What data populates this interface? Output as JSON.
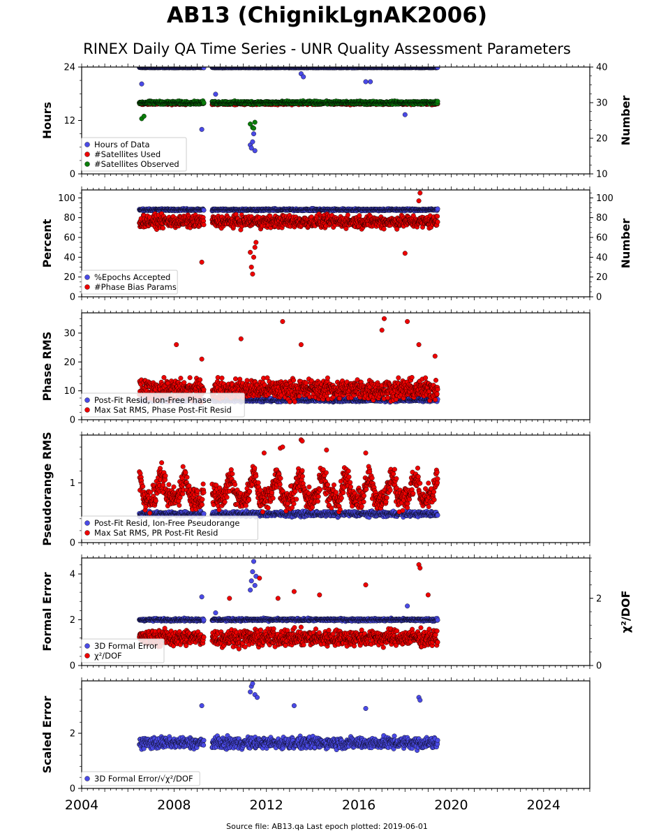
{
  "title": "AB13 (ChignikLgnAK2006)",
  "subtitle": "RINEX Daily QA Time Series - UNR Quality Assessment Parameters",
  "footer": "Source file: AB13.qa Last epoch plotted: 2019-06-01",
  "colors": {
    "blue": "#4a4ae6",
    "red": "#ee0000",
    "green": "#0a7d0a",
    "edge": "#000000"
  },
  "chart_data": [
    {
      "type": "scatter",
      "ylabel": "Hours",
      "ylabel_right": "Number",
      "xlim": [
        2004,
        2026
      ],
      "ylim": [
        0,
        24
      ],
      "ylim_right": [
        10,
        40
      ],
      "yticks": [
        "0",
        "12",
        "24"
      ],
      "yticks_right": [
        "10",
        "20",
        "30",
        "40"
      ],
      "legend": "lower-left",
      "series": [
        {
          "name": "Hours of Data",
          "color": "blue",
          "axis": "left",
          "base": 23.9,
          "jitter": 0.1,
          "outliers": [
            [
              2006.6,
              20.2
            ],
            [
              2009.2,
              10.0
            ],
            [
              2009.8,
              17.9
            ],
            [
              2011.3,
              6.5
            ],
            [
              2011.35,
              5.8
            ],
            [
              2011.4,
              7.2
            ],
            [
              2011.45,
              9.0
            ],
            [
              2011.5,
              5.2
            ],
            [
              2013.5,
              22.5
            ],
            [
              2013.6,
              21.8
            ],
            [
              2016.3,
              20.7
            ],
            [
              2016.5,
              20.7
            ],
            [
              2018.0,
              13.3
            ]
          ]
        },
        {
          "name": "#Satellites Used",
          "color": "red",
          "axis": "right",
          "base": 29.8,
          "jitter": 0.5,
          "outliers": [
            [
              2009.8,
              30.0
            ]
          ]
        },
        {
          "name": "#Satellites Observed",
          "color": "green",
          "axis": "right",
          "base": 30.0,
          "jitter": 0.6,
          "outliers": [
            [
              2006.6,
              25.5
            ],
            [
              2006.7,
              26.2
            ],
            [
              2011.3,
              24.0
            ],
            [
              2011.4,
              23.0
            ],
            [
              2011.45,
              22.8
            ],
            [
              2011.5,
              24.5
            ]
          ]
        }
      ]
    },
    {
      "type": "scatter",
      "ylabel": "Percent",
      "ylabel_right": "Number",
      "xlim": [
        2004,
        2026
      ],
      "ylim": [
        0,
        108
      ],
      "ylim_right": [
        0,
        108
      ],
      "yticks": [
        "0",
        "20",
        "40",
        "60",
        "80",
        "100"
      ],
      "yticks_right": [
        "0",
        "20",
        "40",
        "60",
        "80",
        "100"
      ],
      "legend": "lower-left",
      "series": [
        {
          "name": "%Epochs Accepted",
          "color": "blue",
          "axis": "left",
          "base": 88,
          "jitter": 1.5,
          "outliers": []
        },
        {
          "name": "#Phase Bias Params",
          "color": "red",
          "axis": "right",
          "base": 76,
          "jitter": 9,
          "outliers": [
            [
              2009.2,
              35
            ],
            [
              2011.3,
              45
            ],
            [
              2011.35,
              30
            ],
            [
              2011.4,
              23
            ],
            [
              2011.45,
              40
            ],
            [
              2011.5,
              50
            ],
            [
              2011.55,
              55
            ],
            [
              2018.0,
              44
            ],
            [
              2018.6,
              97
            ],
            [
              2018.65,
              105
            ]
          ]
        }
      ]
    },
    {
      "type": "scatter",
      "ylabel": "Phase RMS",
      "xlim": [
        2004,
        2026
      ],
      "ylim": [
        0,
        37
      ],
      "yticks": [
        "0",
        "10",
        "20",
        "30"
      ],
      "legend": "lower-left",
      "series": [
        {
          "name": "Post-Fit Resid, Ion-Free Phase",
          "color": "blue",
          "axis": "left",
          "base": 6.8,
          "jitter": 0.8,
          "outliers": []
        },
        {
          "name": "Max Sat RMS, Phase Post-Fit Resid",
          "color": "red",
          "axis": "left",
          "base": 10.5,
          "jitter": 5,
          "outliers": [
            [
              2008.1,
              26
            ],
            [
              2009.2,
              21
            ],
            [
              2010.9,
              28
            ],
            [
              2012.7,
              34
            ],
            [
              2013.5,
              26
            ],
            [
              2017.0,
              31
            ],
            [
              2017.1,
              35
            ],
            [
              2018.1,
              34
            ],
            [
              2018.6,
              26
            ],
            [
              2019.3,
              22
            ]
          ]
        }
      ]
    },
    {
      "type": "scatter",
      "ylabel": "Pseudorange RMS",
      "xlim": [
        2004,
        2026
      ],
      "ylim": [
        0,
        1.8
      ],
      "yticks": [
        "0",
        "1"
      ],
      "legend": "lower-left",
      "series": [
        {
          "name": "Post-Fit Resid, Ion-Free Pseudorange",
          "color": "blue",
          "axis": "left",
          "base": 0.48,
          "jitter": 0.06,
          "outliers": []
        },
        {
          "name": "Max Sat RMS, PR Post-Fit Resid",
          "color": "red",
          "axis": "left",
          "base": 0.75,
          "jitter": 0.3,
          "seasonal": 0.35,
          "outliers": [
            [
              2011.9,
              1.5
            ],
            [
              2012.6,
              1.58
            ],
            [
              2012.7,
              1.6
            ],
            [
              2013.5,
              1.72
            ],
            [
              2013.55,
              1.7
            ],
            [
              2014.6,
              1.55
            ],
            [
              2016.3,
              1.5
            ]
          ]
        }
      ]
    },
    {
      "type": "scatter",
      "ylabel": "Formal Error",
      "ylabel_right": "χ²/DOF",
      "xlim": [
        2004,
        2026
      ],
      "ylim": [
        0,
        4.7
      ],
      "ylim_right": [
        0,
        3.2
      ],
      "yticks": [
        "0",
        "2",
        "4"
      ],
      "yticks_right": [
        "0",
        "2"
      ],
      "legend": "lower-left",
      "series": [
        {
          "name": "3D Formal Error",
          "color": "blue",
          "axis": "left",
          "base": 2.0,
          "jitter": 0.08,
          "outliers": [
            [
              2009.2,
              3.0
            ],
            [
              2009.8,
              2.3
            ],
            [
              2011.3,
              3.3
            ],
            [
              2011.35,
              3.7
            ],
            [
              2011.4,
              4.1
            ],
            [
              2011.45,
              4.55
            ],
            [
              2011.5,
              3.5
            ],
            [
              2011.55,
              3.9
            ],
            [
              2018.1,
              2.6
            ]
          ]
        },
        {
          "name": "χ²/DOF",
          "color": "red",
          "axis": "right",
          "base": 0.82,
          "jitter": 0.35,
          "outliers": [
            [
              2010.4,
              2.0
            ],
            [
              2011.7,
              2.6
            ],
            [
              2012.5,
              2.0
            ],
            [
              2013.2,
              2.2
            ],
            [
              2014.3,
              2.1
            ],
            [
              2016.3,
              2.4
            ],
            [
              2018.6,
              3.0
            ],
            [
              2018.65,
              2.9
            ],
            [
              2019.0,
              2.1
            ]
          ]
        }
      ]
    },
    {
      "type": "scatter",
      "ylabel": "Scaled Error",
      "xlim": [
        2004,
        2026
      ],
      "ylim": [
        0,
        3.9
      ],
      "yticks": [
        "0",
        "2"
      ],
      "legend": "lower-left",
      "series": [
        {
          "name": "3D Formal Error/√χ²/DOF",
          "color": "blue",
          "axis": "left",
          "base": 1.65,
          "jitter": 0.3,
          "outliers": [
            [
              2009.2,
              3.0
            ],
            [
              2011.3,
              3.5
            ],
            [
              2011.35,
              3.7
            ],
            [
              2011.4,
              3.8
            ],
            [
              2011.5,
              3.4
            ],
            [
              2011.6,
              3.3
            ],
            [
              2013.2,
              3.0
            ],
            [
              2016.3,
              2.9
            ],
            [
              2018.6,
              3.3
            ],
            [
              2018.65,
              3.2
            ]
          ]
        }
      ]
    }
  ],
  "data_segments": [
    [
      2006.5,
      2009.3
    ],
    [
      2009.65,
      2019.42
    ]
  ],
  "xticks": [
    "2004",
    "2008",
    "2012",
    "2016",
    "2020",
    "2024"
  ]
}
